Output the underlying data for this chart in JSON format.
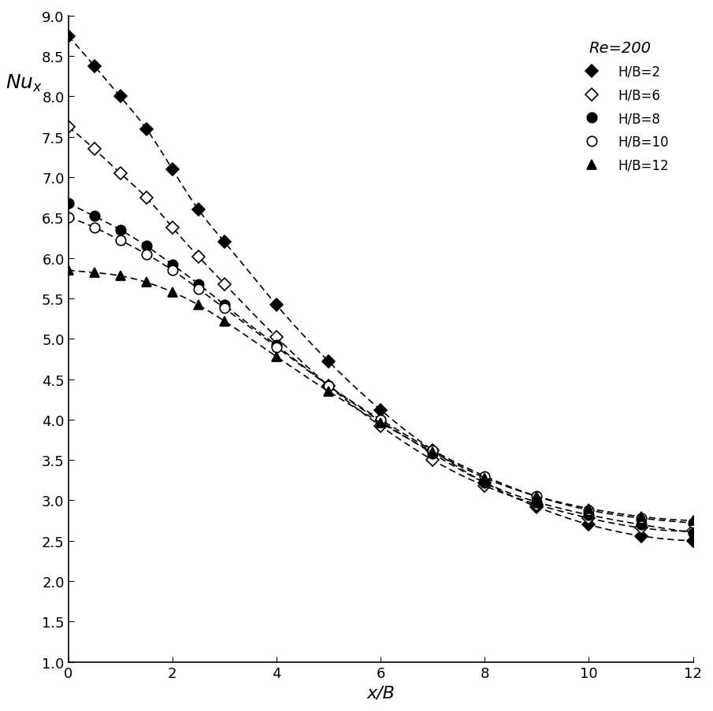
{
  "title": "",
  "xlabel": "x/B",
  "ylabel": "Nu_x",
  "xlim": [
    0,
    12
  ],
  "ylim": [
    1,
    9
  ],
  "yticks": [
    1,
    1.5,
    2,
    2.5,
    3,
    3.5,
    4,
    4.5,
    5,
    5.5,
    6,
    6.5,
    7,
    7.5,
    8,
    8.5,
    9
  ],
  "xticks": [
    0,
    2,
    4,
    6,
    8,
    10,
    12
  ],
  "legend_title": "Re=200",
  "series": [
    {
      "label": "H/B=2",
      "marker": "D",
      "fillstyle": "full",
      "x": [
        0,
        0.5,
        1,
        1.5,
        2,
        2.5,
        3,
        4,
        5,
        6,
        7,
        8,
        9,
        10,
        11,
        12
      ],
      "y": [
        8.75,
        8.38,
        8.0,
        7.6,
        7.1,
        6.6,
        6.2,
        5.42,
        4.72,
        4.12,
        3.62,
        3.22,
        2.92,
        2.7,
        2.56,
        2.5
      ]
    },
    {
      "label": "H/B=6",
      "marker": "D",
      "fillstyle": "none",
      "x": [
        0,
        0.5,
        1,
        1.5,
        2,
        2.5,
        3,
        4,
        5,
        6,
        7,
        8,
        9,
        10,
        11,
        12
      ],
      "y": [
        7.62,
        7.35,
        7.05,
        6.75,
        6.38,
        6.02,
        5.68,
        5.02,
        4.42,
        3.92,
        3.5,
        3.18,
        2.95,
        2.78,
        2.66,
        2.62
      ]
    },
    {
      "label": "H/B=8",
      "marker": "o",
      "fillstyle": "full",
      "x": [
        0,
        0.5,
        1,
        1.5,
        2,
        2.5,
        3,
        4,
        5,
        6,
        7,
        8,
        9,
        10,
        11,
        12
      ],
      "y": [
        6.68,
        6.52,
        6.35,
        6.15,
        5.92,
        5.68,
        5.42,
        4.92,
        4.42,
        3.98,
        3.58,
        3.22,
        2.98,
        2.82,
        2.7,
        2.6
      ]
    },
    {
      "label": "H/B=10",
      "marker": "o",
      "fillstyle": "none",
      "x": [
        0,
        0.5,
        1,
        1.5,
        2,
        2.5,
        3,
        4,
        5,
        6,
        7,
        8,
        9,
        10,
        11,
        12
      ],
      "y": [
        6.5,
        6.38,
        6.22,
        6.05,
        5.85,
        5.62,
        5.38,
        4.9,
        4.42,
        4.0,
        3.62,
        3.3,
        3.05,
        2.88,
        2.78,
        2.72
      ]
    },
    {
      "label": "H/B=12",
      "marker": "^",
      "fillstyle": "full",
      "x": [
        0,
        0.5,
        1,
        1.5,
        2,
        2.5,
        3,
        4,
        5,
        6,
        7,
        8,
        9,
        10,
        11,
        12
      ],
      "y": [
        5.85,
        5.82,
        5.78,
        5.7,
        5.58,
        5.42,
        5.22,
        4.78,
        4.35,
        3.96,
        3.6,
        3.28,
        3.05,
        2.9,
        2.8,
        2.75
      ]
    }
  ]
}
